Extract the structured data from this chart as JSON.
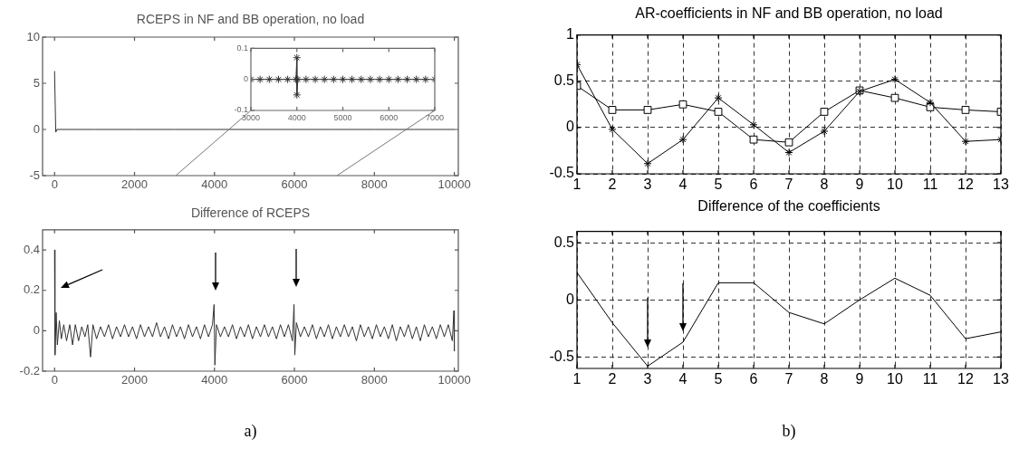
{
  "chart_data": [
    {
      "type": "line",
      "title": "RCEPS in NF and BB operation, no load",
      "x": [
        0,
        30,
        60,
        1000,
        2000,
        3000,
        4000,
        5000,
        6000,
        7000,
        8000,
        9000,
        10000
      ],
      "values": [
        6.3,
        -0.3,
        0,
        0,
        0,
        0,
        0,
        0,
        0,
        0,
        0,
        0,
        0
      ],
      "color": "#333333",
      "xlim": [
        -300,
        10100
      ],
      "ylim": [
        -5,
        10
      ],
      "xticks": [
        0,
        2000,
        4000,
        6000,
        8000,
        10000
      ],
      "yticks": [
        -5,
        0,
        5,
        10
      ],
      "grid": false,
      "marker": "none"
    },
    {
      "type": "line",
      "x": [
        3000,
        3200,
        3400,
        3600,
        3800,
        3980,
        4000,
        4000,
        4020,
        4200,
        4400,
        4600,
        4800,
        5000,
        5200,
        5400,
        5600,
        5800,
        6000,
        6200,
        6400,
        6600,
        6800,
        7000
      ],
      "values": [
        0,
        0,
        0,
        0,
        0,
        0,
        0.07,
        -0.05,
        0,
        0,
        0,
        0,
        0,
        0,
        0,
        0,
        0,
        0,
        0,
        0,
        0,
        0,
        0,
        0
      ],
      "color": "#333333",
      "xlim": [
        3000,
        7000
      ],
      "ylim": [
        -0.1,
        0.1
      ],
      "xticks": [
        3000,
        4000,
        5000,
        6000,
        7000
      ],
      "yticks": [
        -0.1,
        0,
        0.1
      ],
      "grid": false,
      "marker": "cross"
    },
    {
      "type": "line",
      "title": "AR-coefficients in NF and BB operation, no load",
      "x": [
        1,
        2,
        3,
        4,
        5,
        6,
        7,
        8,
        9,
        10,
        11,
        12,
        13
      ],
      "xlim": [
        1,
        13
      ],
      "ylim": [
        -0.5,
        1
      ],
      "xticks": [
        1,
        2,
        3,
        4,
        5,
        6,
        7,
        8,
        9,
        10,
        11,
        12,
        13
      ],
      "yticks": [
        -0.5,
        0,
        0.5,
        1
      ],
      "grid": true,
      "series": [
        {
          "color": "#000000",
          "marker": "cross",
          "values": [
            0.68,
            -0.02,
            -0.39,
            -0.13,
            0.32,
            0.03,
            -0.27,
            -0.04,
            0.39,
            0.52,
            0.27,
            -0.15,
            -0.13
          ]
        },
        {
          "color": "#000000",
          "marker": "square",
          "values": [
            0.45,
            0.19,
            0.19,
            0.25,
            0.17,
            -0.13,
            -0.16,
            0.17,
            0.4,
            0.32,
            0.22,
            0.19,
            0.17
          ]
        }
      ]
    },
    {
      "type": "line",
      "title": "Difference of RCEPS",
      "x": [
        0,
        10,
        40,
        70,
        120,
        170,
        230,
        300,
        380,
        450,
        520,
        600,
        680,
        760,
        830,
        900,
        960,
        1050,
        1150,
        1250,
        1350,
        1450,
        1550,
        1650,
        1750,
        1850,
        1950,
        2050,
        2150,
        2250,
        2350,
        2450,
        2550,
        2650,
        2750,
        2850,
        2950,
        3050,
        3150,
        3250,
        3350,
        3450,
        3550,
        3650,
        3750,
        3850,
        3950,
        3990,
        4010,
        4050,
        4150,
        4250,
        4350,
        4450,
        4550,
        4650,
        4750,
        4850,
        4950,
        5050,
        5150,
        5250,
        5350,
        5450,
        5550,
        5650,
        5750,
        5850,
        5950,
        5990,
        6010,
        6050,
        6150,
        6250,
        6350,
        6450,
        6550,
        6650,
        6750,
        6850,
        6950,
        7050,
        7150,
        7250,
        7350,
        7450,
        7550,
        7650,
        7750,
        7850,
        7950,
        8050,
        8150,
        8250,
        8350,
        8450,
        8550,
        8650,
        8750,
        8850,
        8950,
        9050,
        9150,
        9250,
        9350,
        9450,
        9550,
        9650,
        9750,
        9850,
        9950,
        9990,
        10000
      ],
      "values": [
        0.4,
        -0.12,
        0.09,
        -0.07,
        0.05,
        -0.04,
        0.03,
        -0.05,
        0.03,
        -0.07,
        0.03,
        -0.05,
        0.02,
        -0.03,
        0.03,
        -0.13,
        0.03,
        -0.04,
        0.02,
        -0.03,
        0.03,
        -0.04,
        0.02,
        -0.03,
        0.03,
        -0.03,
        0.02,
        -0.04,
        0.03,
        -0.03,
        0.02,
        -0.03,
        0.04,
        -0.03,
        0.02,
        -0.04,
        0.03,
        -0.03,
        0.02,
        -0.04,
        0.03,
        -0.03,
        0.02,
        -0.04,
        0.03,
        -0.03,
        0.03,
        0.13,
        -0.17,
        0.03,
        -0.03,
        0.02,
        -0.03,
        0.03,
        -0.04,
        0.02,
        -0.03,
        0.03,
        -0.04,
        0.02,
        -0.03,
        0.03,
        -0.03,
        0.02,
        -0.04,
        0.03,
        -0.03,
        0.03,
        -0.05,
        0.13,
        -0.12,
        0.04,
        -0.03,
        0.02,
        -0.03,
        0.03,
        -0.04,
        0.02,
        -0.03,
        0.03,
        -0.04,
        0.02,
        -0.03,
        0.03,
        -0.03,
        0.02,
        -0.05,
        0.03,
        -0.03,
        0.02,
        -0.04,
        0.03,
        -0.03,
        0.02,
        -0.04,
        0.03,
        -0.05,
        0.02,
        -0.03,
        0.03,
        -0.04,
        0.02,
        -0.05,
        0.03,
        -0.03,
        0.02,
        -0.04,
        0.03,
        -0.03,
        0.03,
        -0.05,
        0.1,
        -0.1
      ],
      "color": "#333333",
      "xlim": [
        -300,
        10100
      ],
      "ylim": [
        -0.2,
        0.5
      ],
      "xticks": [
        0,
        2000,
        4000,
        6000,
        8000,
        10000
      ],
      "yticks": [
        -0.2,
        0,
        0.2,
        0.4
      ],
      "grid": false,
      "marker": "none",
      "annotations": [
        "a)"
      ]
    },
    {
      "type": "line",
      "title": "Difference of the coefficients",
      "x": [
        1,
        2,
        3,
        4,
        5,
        6,
        7,
        8,
        9,
        10,
        11,
        12,
        13
      ],
      "values": [
        0.24,
        -0.2,
        -0.58,
        -0.37,
        0.15,
        0.15,
        -0.11,
        -0.21,
        0,
        0.19,
        0.04,
        -0.34,
        -0.28
      ],
      "color": "#000000",
      "xlim": [
        1,
        13
      ],
      "ylim": [
        -0.6,
        0.6
      ],
      "xticks": [
        1,
        2,
        3,
        4,
        5,
        6,
        7,
        8,
        9,
        10,
        11,
        12,
        13
      ],
      "yticks": [
        -0.5,
        0,
        0.5
      ],
      "grid": true,
      "marker": "none",
      "annotations": [
        "b)"
      ]
    }
  ]
}
